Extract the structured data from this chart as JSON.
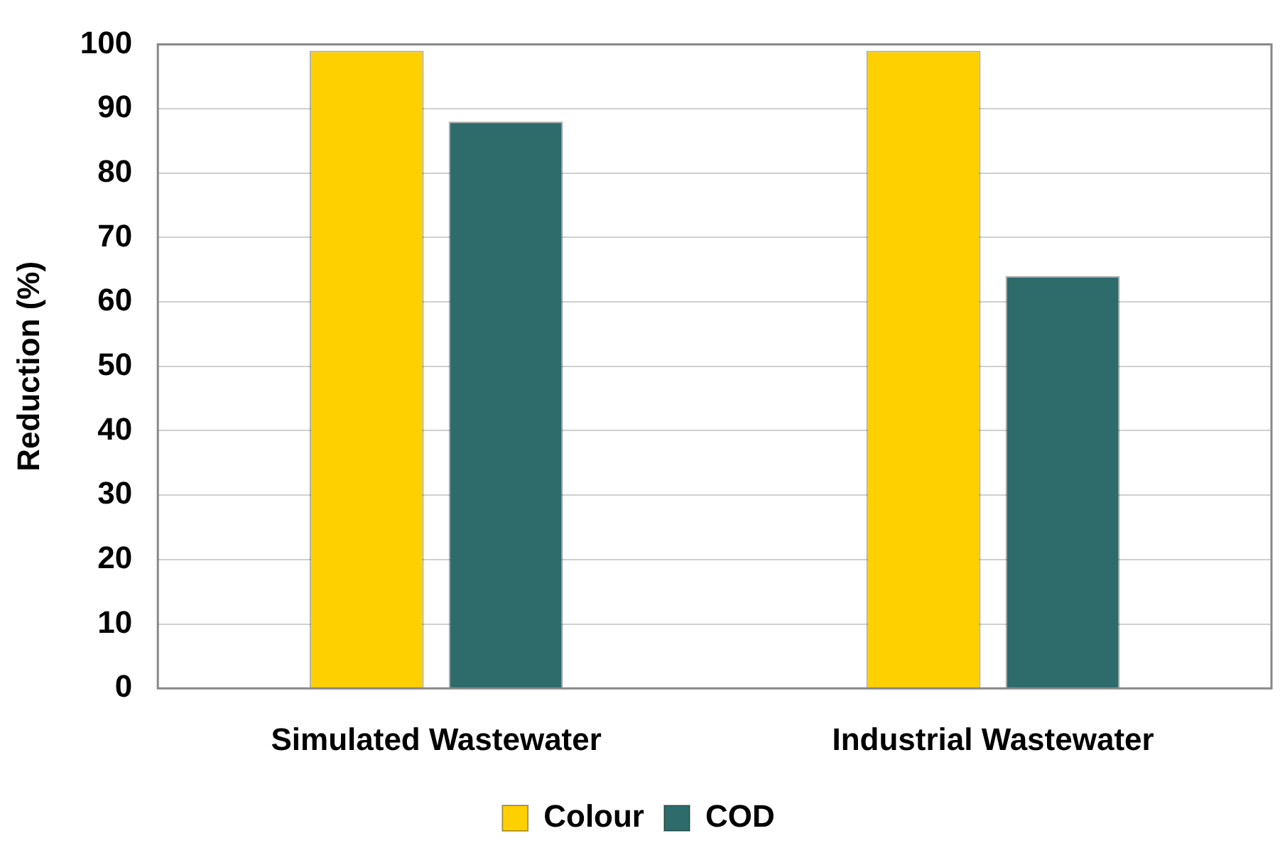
{
  "chart_data": {
    "type": "bar",
    "categories": [
      "Simulated Wastewater",
      "Industrial Wastewater"
    ],
    "ylabel": "Reduction (%)",
    "series": [
      {
        "name": "Colour",
        "color": "#ffd000",
        "values": [
          99,
          99
        ]
      },
      {
        "name": "COD",
        "color": "#2e6b6b",
        "values": [
          88,
          64
        ]
      }
    ],
    "ylim": [
      0,
      100
    ],
    "yticks": [
      0,
      10,
      20,
      30,
      40,
      50,
      60,
      70,
      80,
      90,
      100
    ],
    "grid": "y",
    "legend": "bottom"
  }
}
